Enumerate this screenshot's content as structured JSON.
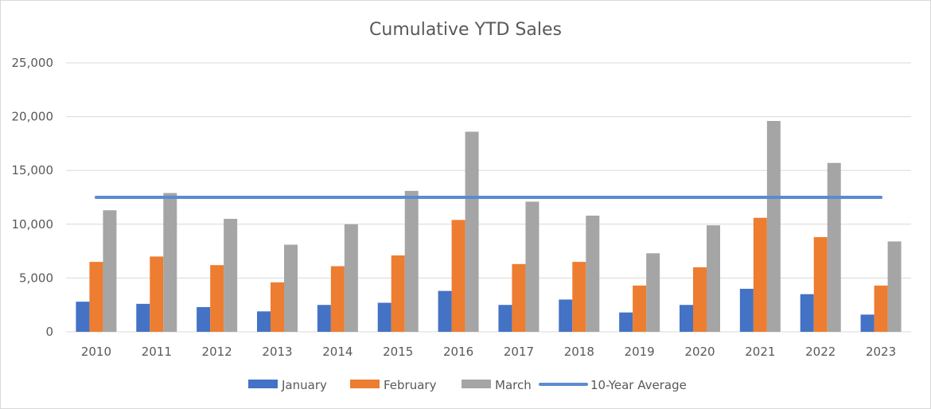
{
  "chart_data": {
    "type": "bar",
    "title": "Cumulative YTD Sales",
    "xlabel": "",
    "ylabel": "",
    "ylim": [
      0,
      25000
    ],
    "yticks": [
      "0",
      "5,000",
      "10,000",
      "15,000",
      "20,000",
      "25,000"
    ],
    "ytick_values": [
      0,
      5000,
      10000,
      15000,
      20000,
      25000
    ],
    "grid": true,
    "legend_position": "bottom",
    "categories": [
      "2010",
      "2011",
      "2012",
      "2013",
      "2014",
      "2015",
      "2016",
      "2017",
      "2018",
      "2019",
      "2020",
      "2021",
      "2022",
      "2023"
    ],
    "series": [
      {
        "name": "January",
        "kind": "bar",
        "color": "#4472C4",
        "values": [
          2800,
          2600,
          2300,
          1900,
          2500,
          2700,
          3800,
          2500,
          3000,
          1800,
          2500,
          4000,
          3500,
          1600
        ]
      },
      {
        "name": "February",
        "kind": "bar",
        "color": "#ED7D31",
        "values": [
          6500,
          7000,
          6200,
          4600,
          6100,
          7100,
          10400,
          6300,
          6500,
          4300,
          6000,
          10600,
          8800,
          4300
        ]
      },
      {
        "name": "March",
        "kind": "bar",
        "color": "#A5A5A5",
        "values": [
          11300,
          12900,
          10500,
          8100,
          10000,
          13100,
          18600,
          12100,
          10800,
          7300,
          9900,
          19600,
          15700,
          8400
        ]
      },
      {
        "name": "10-Year Average",
        "kind": "line",
        "color": "#5B8BD0",
        "values": [
          12500,
          12500,
          12500,
          12500,
          12500,
          12500,
          12500,
          12500,
          12500,
          12500,
          12500,
          12500,
          12500,
          12500
        ]
      }
    ]
  }
}
